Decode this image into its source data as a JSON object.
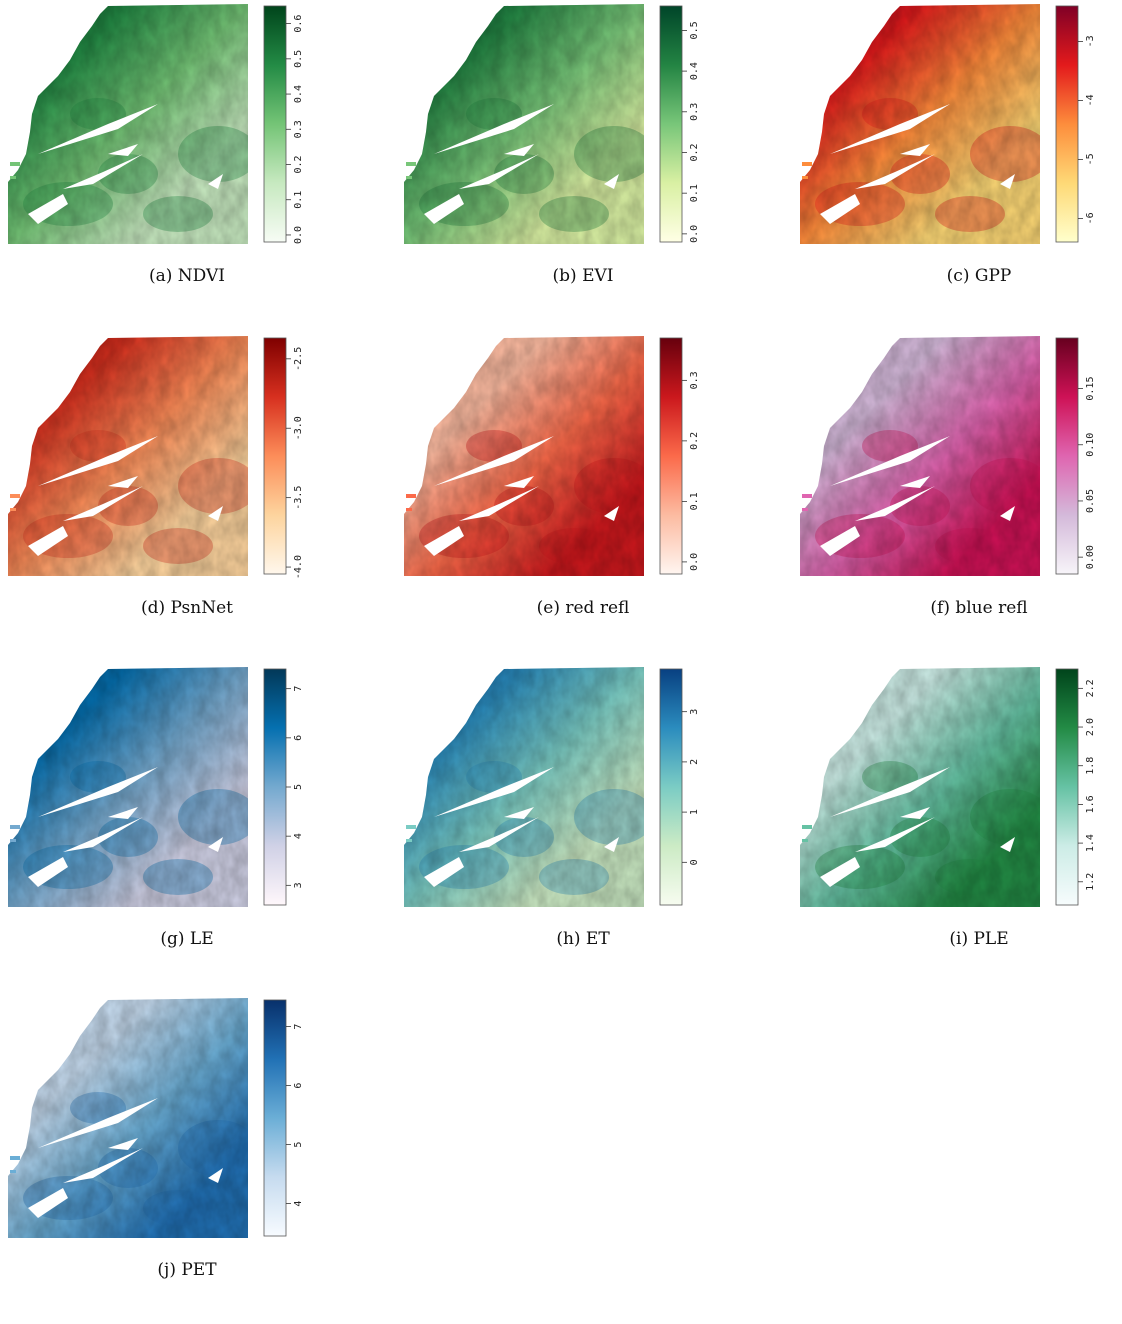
{
  "panels": [
    {
      "caption": "(a)  NDVI",
      "ticks": [
        "0.0",
        "0.1",
        "0.2",
        "0.3",
        "0.4",
        "0.5",
        "0.6"
      ],
      "tick_values": [
        0.0,
        0.1,
        0.2,
        0.3,
        0.4,
        0.5,
        0.6
      ],
      "range": [
        -0.02,
        0.65
      ],
      "pattern": "coast_high",
      "colors": [
        "#f7fcf5",
        "#c7e9c0",
        "#74c476",
        "#238b45",
        "#00441b"
      ]
    },
    {
      "caption": "(b)  EVI",
      "ticks": [
        "0.0",
        "0.1",
        "0.2",
        "0.3",
        "0.4",
        "0.5"
      ],
      "tick_values": [
        0.0,
        0.1,
        0.2,
        0.3,
        0.4,
        0.5
      ],
      "range": [
        -0.02,
        0.56
      ],
      "pattern": "coast_high",
      "colors": [
        "#ffffe5",
        "#d9f0a3",
        "#78c679",
        "#238443",
        "#004529"
      ]
    },
    {
      "caption": "(c)  GPP",
      "ticks": [
        "-6",
        "-5",
        "-4",
        "-3"
      ],
      "tick_values": [
        -6,
        -5,
        -4,
        -3
      ],
      "range": [
        -6.4,
        -2.4
      ],
      "pattern": "coast_high",
      "colors": [
        "#ffffcc",
        "#fed976",
        "#fd8d3c",
        "#e31a1c",
        "#800026"
      ]
    },
    {
      "caption": "(d)  PsnNet",
      "ticks": [
        "-4.0",
        "-3.5",
        "-3.0",
        "-2.5"
      ],
      "tick_values": [
        -4.0,
        -3.5,
        -3.0,
        -2.5
      ],
      "range": [
        -4.05,
        -2.35
      ],
      "pattern": "coast_high",
      "colors": [
        "#fff7ec",
        "#fdd49e",
        "#fc8d59",
        "#d7301f",
        "#7f0000"
      ]
    },
    {
      "caption": "(e)  red refl",
      "ticks": [
        "0.0",
        "0.1",
        "0.2",
        "0.3"
      ],
      "tick_values": [
        0.0,
        0.1,
        0.2,
        0.3
      ],
      "range": [
        -0.02,
        0.37
      ],
      "pattern": "inland_high",
      "colors": [
        "#fff5f0",
        "#fcbba1",
        "#fb6a4a",
        "#cb181d",
        "#67000d"
      ]
    },
    {
      "caption": "(f)  blue refl",
      "ticks": [
        "0.00",
        "0.05",
        "0.10",
        "0.15"
      ],
      "tick_values": [
        0.0,
        0.05,
        0.1,
        0.15
      ],
      "range": [
        -0.015,
        0.195
      ],
      "pattern": "inland_high",
      "colors": [
        "#f7f4f9",
        "#d4b9da",
        "#df65b0",
        "#ce1256",
        "#67001f"
      ]
    },
    {
      "caption": "(g)  LE",
      "ticks": [
        "3",
        "4",
        "5",
        "6",
        "7"
      ],
      "tick_values": [
        3,
        4,
        5,
        6,
        7
      ],
      "range": [
        2.6,
        7.4
      ],
      "pattern": "coast_high",
      "colors": [
        "#fff7fb",
        "#d0d1e6",
        "#74a9cf",
        "#0570b0",
        "#023858"
      ]
    },
    {
      "caption": "(h)  ET",
      "ticks": [
        "0",
        "1",
        "2",
        "3"
      ],
      "tick_values": [
        0,
        1,
        2,
        3
      ],
      "range": [
        -0.85,
        3.85
      ],
      "pattern": "coast_high",
      "colors": [
        "#f7fcf0",
        "#ccebc5",
        "#7bccc4",
        "#2b8cbe",
        "#084081"
      ]
    },
    {
      "caption": "(i)  PLE",
      "ticks": [
        "1.2",
        "1.4",
        "1.6",
        "1.8",
        "2.0",
        "2.2"
      ],
      "tick_values": [
        1.2,
        1.4,
        1.6,
        1.8,
        2.0,
        2.2
      ],
      "range": [
        1.08,
        2.3
      ],
      "pattern": "inland_high",
      "colors": [
        "#f7fcfd",
        "#ccece6",
        "#66c2a4",
        "#238b45",
        "#00441b"
      ]
    },
    {
      "caption": "(j)  PET",
      "ticks": [
        "4",
        "5",
        "6",
        "7"
      ],
      "tick_values": [
        4,
        5,
        6,
        7
      ],
      "range": [
        3.45,
        7.45
      ],
      "pattern": "inland_high",
      "colors": [
        "#f7fbff",
        "#c6dbef",
        "#6baed6",
        "#2171b5",
        "#08306b"
      ]
    }
  ]
}
